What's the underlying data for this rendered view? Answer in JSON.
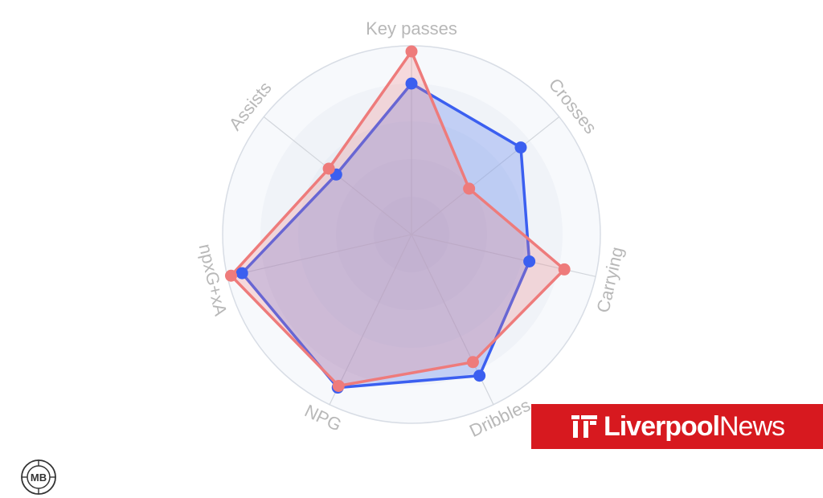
{
  "chart_data": {
    "type": "radar",
    "categories": [
      "Key passes",
      "Crosses",
      "Carrying",
      "Dribbles",
      "NPG",
      "npxG+xA",
      "Assists"
    ],
    "rmax": 100,
    "rings": 5,
    "series": [
      {
        "color": "#3b5ff0",
        "fill": "rgba(90,125,240,0.30)",
        "values": [
          80,
          74,
          64,
          83,
          90,
          92,
          51
        ]
      },
      {
        "color": "#ee7b7b",
        "fill": "rgba(238,123,123,0.25)",
        "values": [
          97,
          39,
          83,
          75,
          89,
          98,
          56
        ]
      }
    ]
  },
  "brand": {
    "name_bold": "Liverpool",
    "name_light": "News",
    "color": "#d7191f"
  },
  "watermark": {
    "text": "MB"
  }
}
